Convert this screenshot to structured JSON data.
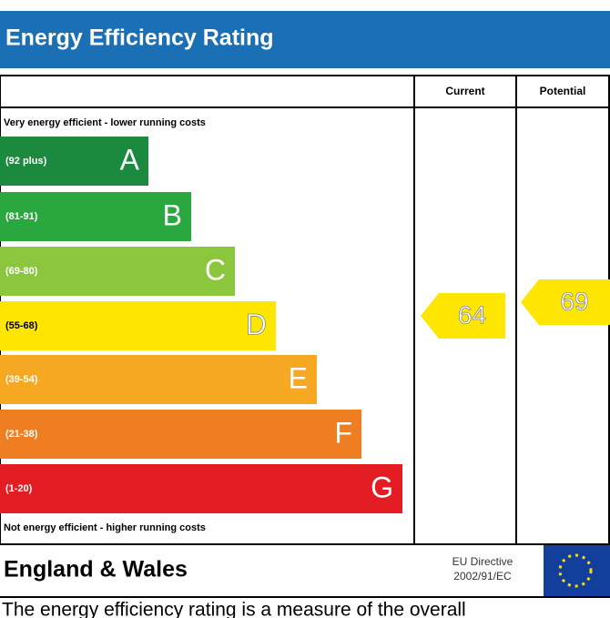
{
  "header": {
    "title": "Energy Efficiency Rating"
  },
  "columns": [
    "Current",
    "Potential"
  ],
  "top_note": "Very energy efficient - lower running costs",
  "bands": [
    {
      "range": "(92 plus)",
      "letter": "A",
      "color": "#1b8a3e"
    },
    {
      "range": "(81-91)",
      "letter": "B",
      "color": "#2aa83f"
    },
    {
      "range": "(69-80)",
      "letter": "C",
      "color": "#8cc63f"
    },
    {
      "range": "(55-68)",
      "letter": "D",
      "color": "#ffe600"
    },
    {
      "range": "(39-54)",
      "letter": "E",
      "color": "#f7a823"
    },
    {
      "range": "(21-38)",
      "letter": "F",
      "color": "#ef7d22"
    },
    {
      "range": "(1-20)",
      "letter": "G",
      "color": "#e31d23"
    }
  ],
  "bottom_note": "Not energy efficient - higher running costs",
  "ratings": {
    "current": 64,
    "potential": 69,
    "color": "#ffe600"
  },
  "footer": {
    "region": "England & Wales",
    "directive": [
      "EU Directive",
      "2002/91/EC"
    ],
    "caption": "The energy efficiency rating is a measure of the overall"
  }
}
